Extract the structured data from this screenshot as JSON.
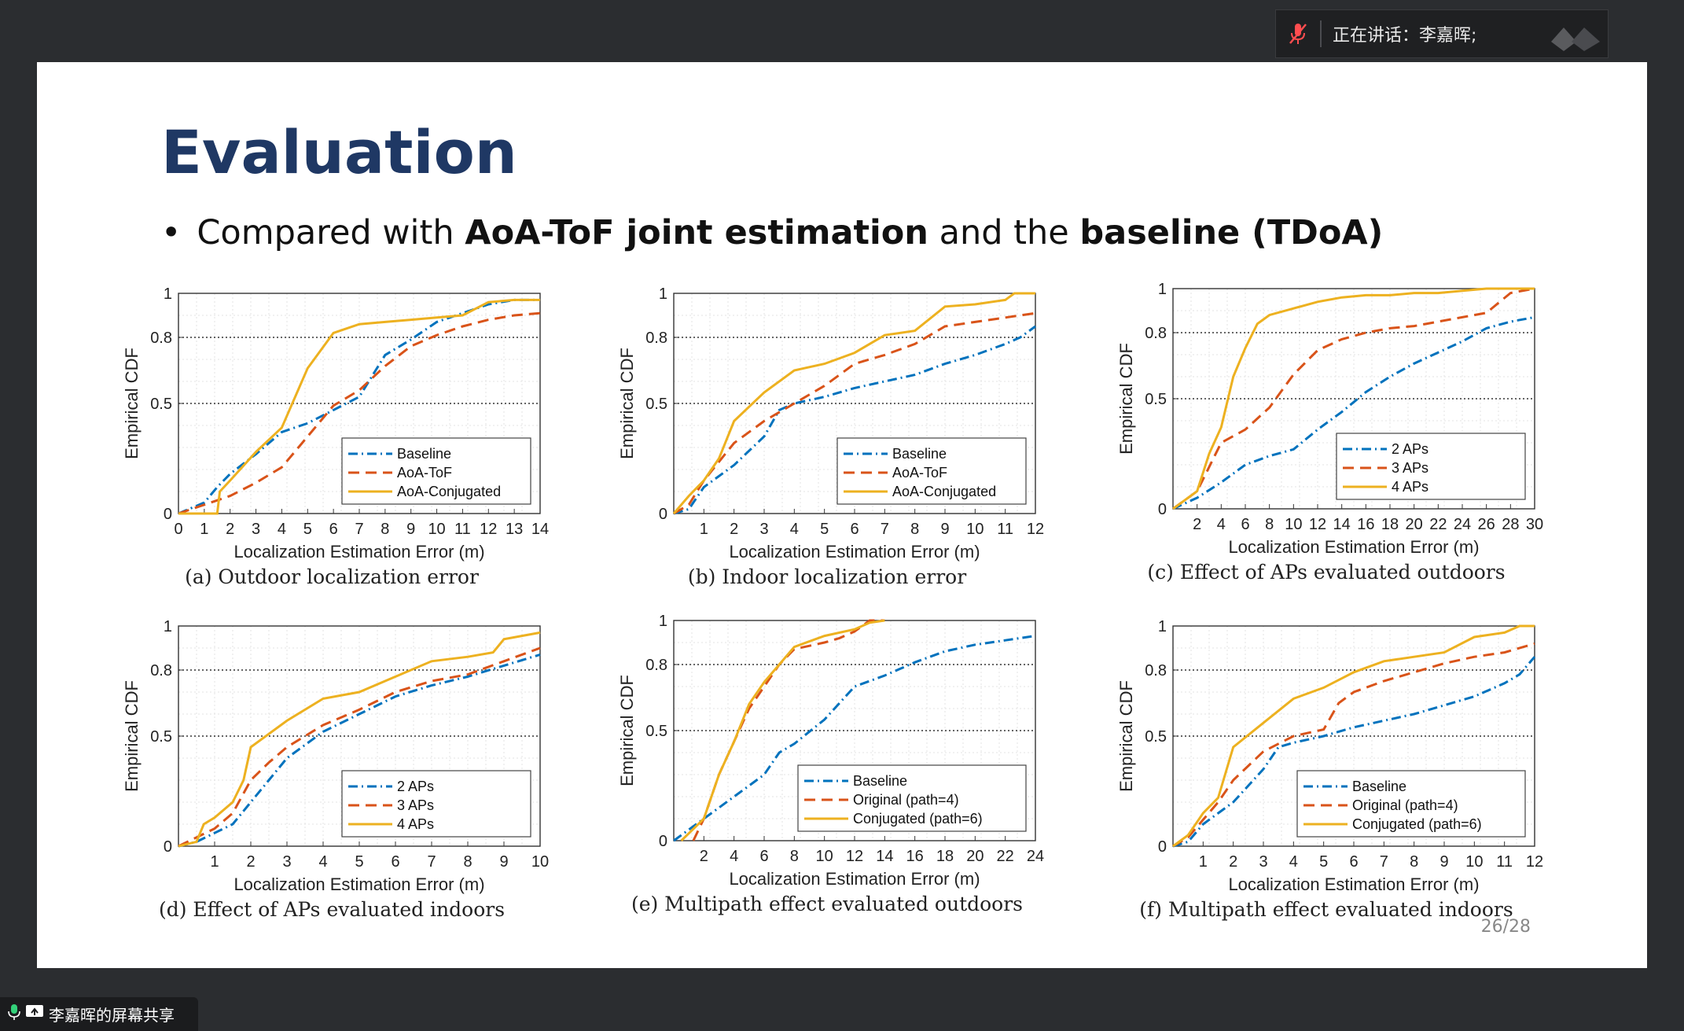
{
  "speaker_bar": {
    "label": "正在讲话：李嘉晖;"
  },
  "share_tag": {
    "label": "李嘉晖的屏幕共享"
  },
  "slide": {
    "title": "Evaluation",
    "bullet": {
      "pre": "Compared with ",
      "b1": "AoA-ToF joint estimation",
      "mid": " and the ",
      "b2": "baseline (TDoA)"
    },
    "page": "26/28"
  },
  "colors": {
    "blue": "#0072bd",
    "orange": "#d95319",
    "yellow": "#edb120",
    "title": "#1f3864"
  },
  "chart_data": [
    {
      "type": "line",
      "caption": "(a)  Outdoor localization error",
      "xlabel": "Localization Estimation Error (m)",
      "ylabel": "Empirical CDF",
      "xlim": [
        0,
        14
      ],
      "ylim": [
        0,
        1
      ],
      "xticks": [
        0,
        1,
        2,
        3,
        4,
        5,
        6,
        7,
        8,
        9,
        10,
        11,
        12,
        13,
        14
      ],
      "yticks": [
        {
          "v": 0,
          "l": "0"
        },
        {
          "v": 0.5,
          "l": "0.5"
        },
        {
          "v": 0.8,
          "l": "0.8"
        },
        {
          "v": 1,
          "l": "1"
        }
      ],
      "legend_pos": "bottom-right",
      "series": [
        {
          "name": "Baseline",
          "style": "dashdot",
          "color": "#0072bd",
          "x": [
            0,
            1,
            1.5,
            2,
            3,
            4,
            5,
            6,
            7,
            8,
            9,
            10,
            11,
            12,
            13,
            14
          ],
          "y": [
            0,
            0.05,
            0.12,
            0.18,
            0.27,
            0.37,
            0.41,
            0.47,
            0.53,
            0.72,
            0.79,
            0.87,
            0.91,
            0.95,
            0.97,
            0.97
          ]
        },
        {
          "name": "AoA-ToF",
          "style": "dashed",
          "color": "#d95319",
          "x": [
            0,
            1,
            2,
            3,
            4,
            5,
            6,
            7,
            8,
            9,
            10,
            11,
            12,
            13,
            14
          ],
          "y": [
            0,
            0.04,
            0.08,
            0.14,
            0.21,
            0.35,
            0.49,
            0.56,
            0.67,
            0.76,
            0.81,
            0.85,
            0.88,
            0.9,
            0.91
          ]
        },
        {
          "name": "AoA-Conjugated",
          "style": "solid",
          "color": "#edb120",
          "x": [
            0,
            1.5,
            1.6,
            2,
            3,
            4,
            5,
            6,
            7,
            8,
            9,
            10,
            11,
            12,
            13,
            14
          ],
          "y": [
            0,
            0,
            0.1,
            0.15,
            0.28,
            0.39,
            0.66,
            0.82,
            0.86,
            0.87,
            0.88,
            0.89,
            0.9,
            0.96,
            0.97,
            0.97
          ]
        }
      ]
    },
    {
      "type": "line",
      "caption": "(b)  Indoor localization error",
      "xlabel": "Localization Estimation Error (m)",
      "ylabel": "Empirical CDF",
      "xlim": [
        0,
        12
      ],
      "ylim": [
        0,
        1
      ],
      "xticks": [
        1,
        2,
        3,
        4,
        5,
        6,
        7,
        8,
        9,
        10,
        11,
        12
      ],
      "yticks": [
        {
          "v": 0,
          "l": "0"
        },
        {
          "v": 0.5,
          "l": "0.5"
        },
        {
          "v": 0.8,
          "l": "0.8"
        },
        {
          "v": 1,
          "l": "1"
        }
      ],
      "legend_pos": "bottom-right",
      "series": [
        {
          "name": "Baseline",
          "style": "dashdot",
          "color": "#0072bd",
          "x": [
            0,
            0.5,
            1,
            2,
            3,
            3.5,
            4,
            5,
            6,
            7,
            8,
            9,
            10,
            11,
            11.5,
            12
          ],
          "y": [
            0,
            0.02,
            0.12,
            0.22,
            0.35,
            0.47,
            0.5,
            0.53,
            0.57,
            0.6,
            0.63,
            0.68,
            0.72,
            0.77,
            0.8,
            0.85
          ]
        },
        {
          "name": "AoA-ToF",
          "style": "dashed",
          "color": "#d95319",
          "x": [
            0,
            0.5,
            1,
            2,
            3,
            4,
            5,
            6,
            7,
            8,
            9,
            10,
            11,
            12
          ],
          "y": [
            0,
            0.04,
            0.15,
            0.32,
            0.42,
            0.5,
            0.58,
            0.68,
            0.72,
            0.77,
            0.85,
            0.87,
            0.89,
            0.91
          ]
        },
        {
          "name": "AoA-Conjugated",
          "style": "solid",
          "color": "#edb120",
          "x": [
            0,
            0.5,
            1,
            1.5,
            2,
            3,
            4,
            5,
            6,
            7,
            8,
            9,
            10,
            11,
            11.3,
            12
          ],
          "y": [
            0,
            0.08,
            0.15,
            0.25,
            0.42,
            0.55,
            0.65,
            0.68,
            0.73,
            0.81,
            0.83,
            0.94,
            0.95,
            0.97,
            1,
            1
          ]
        }
      ]
    },
    {
      "type": "line",
      "caption": "(c)  Effect of APs evaluated outdoors",
      "xlabel": "Localization Estimation Error (m)",
      "ylabel": "Empirical CDF",
      "xlim": [
        0,
        30
      ],
      "ylim": [
        0,
        1
      ],
      "xticks": [
        2,
        4,
        6,
        8,
        10,
        12,
        14,
        16,
        18,
        20,
        22,
        24,
        26,
        28,
        30
      ],
      "yticks": [
        {
          "v": 0,
          "l": "0"
        },
        {
          "v": 0.5,
          "l": "0.5"
        },
        {
          "v": 0.8,
          "l": "0.8"
        },
        {
          "v": 1,
          "l": "1"
        }
      ],
      "legend_pos": "bottom-right",
      "series": [
        {
          "name": "2 APs",
          "style": "dashdot",
          "color": "#0072bd",
          "x": [
            0,
            2,
            4,
            6,
            8,
            10,
            12,
            14,
            16,
            18,
            20,
            22,
            24,
            26,
            28,
            30
          ],
          "y": [
            0,
            0.05,
            0.12,
            0.2,
            0.24,
            0.27,
            0.36,
            0.44,
            0.53,
            0.6,
            0.66,
            0.71,
            0.76,
            0.82,
            0.85,
            0.87
          ]
        },
        {
          "name": "3 APs",
          "style": "dashed",
          "color": "#d95319",
          "x": [
            0,
            2,
            4,
            6,
            8,
            10,
            12,
            14,
            16,
            18,
            20,
            22,
            24,
            26,
            28,
            30
          ],
          "y": [
            0,
            0.08,
            0.3,
            0.36,
            0.46,
            0.61,
            0.72,
            0.77,
            0.8,
            0.82,
            0.83,
            0.85,
            0.87,
            0.89,
            0.98,
            1
          ]
        },
        {
          "name": "4 APs",
          "style": "solid",
          "color": "#edb120",
          "x": [
            0,
            2,
            3,
            4,
            5,
            6,
            7,
            8,
            10,
            12,
            14,
            16,
            18,
            20,
            22,
            24,
            26,
            28,
            30
          ],
          "y": [
            0,
            0.08,
            0.25,
            0.37,
            0.6,
            0.73,
            0.84,
            0.88,
            0.91,
            0.94,
            0.96,
            0.97,
            0.97,
            0.98,
            0.98,
            0.99,
            1,
            1,
            1
          ]
        }
      ]
    },
    {
      "type": "line",
      "caption": "(d)  Effect of APs evaluated indoors",
      "xlabel": "Localization Estimation Error (m)",
      "ylabel": "Empirical CDF",
      "xlim": [
        0,
        10
      ],
      "ylim": [
        0,
        1
      ],
      "xticks": [
        1,
        2,
        3,
        4,
        5,
        6,
        7,
        8,
        9,
        10
      ],
      "yticks": [
        {
          "v": 0,
          "l": "0"
        },
        {
          "v": 0.5,
          "l": "0.5"
        },
        {
          "v": 0.8,
          "l": "0.8"
        },
        {
          "v": 1,
          "l": "1"
        }
      ],
      "legend_pos": "bottom-right",
      "series": [
        {
          "name": "2 APs",
          "style": "dashdot",
          "color": "#0072bd",
          "x": [
            0,
            0.5,
            1,
            1.5,
            2,
            2.5,
            3,
            4,
            5,
            6,
            7,
            8,
            9,
            10
          ],
          "y": [
            0,
            0.02,
            0.06,
            0.1,
            0.2,
            0.3,
            0.4,
            0.52,
            0.6,
            0.68,
            0.73,
            0.77,
            0.82,
            0.87
          ]
        },
        {
          "name": "3 APs",
          "style": "dashed",
          "color": "#d95319",
          "x": [
            0,
            0.5,
            1,
            1.5,
            2,
            2.5,
            3,
            4,
            5,
            6,
            7,
            8,
            9,
            10
          ],
          "y": [
            0,
            0.04,
            0.08,
            0.15,
            0.3,
            0.38,
            0.45,
            0.55,
            0.62,
            0.7,
            0.75,
            0.78,
            0.84,
            0.9
          ]
        },
        {
          "name": "4 APs",
          "style": "solid",
          "color": "#edb120",
          "x": [
            0,
            0.5,
            0.7,
            1,
            1.5,
            1.8,
            2,
            3,
            4,
            5,
            6,
            7,
            8,
            8.7,
            9,
            10
          ],
          "y": [
            0,
            0.02,
            0.1,
            0.13,
            0.2,
            0.3,
            0.45,
            0.57,
            0.67,
            0.7,
            0.77,
            0.84,
            0.86,
            0.88,
            0.94,
            0.97
          ]
        }
      ]
    },
    {
      "type": "line",
      "caption": "(e)  Multipath effect evaluated outdoors",
      "xlabel": "Localization Estimation Error (m)",
      "ylabel": "Empirical CDF",
      "xlim": [
        0,
        24
      ],
      "ylim": [
        0,
        1
      ],
      "xticks": [
        2,
        4,
        6,
        8,
        10,
        12,
        14,
        16,
        18,
        20,
        22,
        24
      ],
      "yticks": [
        {
          "v": 0,
          "l": "0"
        },
        {
          "v": 0.5,
          "l": "0.5"
        },
        {
          "v": 0.8,
          "l": "0.8"
        },
        {
          "v": 1,
          "l": "1"
        }
      ],
      "legend_pos": "bottom-right",
      "series": [
        {
          "name": "Baseline",
          "style": "dashdot",
          "color": "#0072bd",
          "x": [
            0,
            2,
            4,
            6,
            7,
            8,
            10,
            12,
            14,
            16,
            18,
            20,
            22,
            24
          ],
          "y": [
            0,
            0.1,
            0.2,
            0.3,
            0.4,
            0.44,
            0.55,
            0.7,
            0.75,
            0.81,
            0.86,
            0.89,
            0.91,
            0.93
          ]
        },
        {
          "name": "Original (path=4)",
          "style": "dashed",
          "color": "#d95319",
          "x": [
            1.3,
            2,
            3,
            4,
            5,
            6,
            7,
            8,
            10,
            11,
            12,
            13,
            14
          ],
          "y": [
            0,
            0.1,
            0.3,
            0.45,
            0.6,
            0.7,
            0.8,
            0.87,
            0.9,
            0.92,
            0.95,
            1,
            1
          ]
        },
        {
          "name": "Conjugated (path=6)",
          "style": "solid",
          "color": "#edb120",
          "x": [
            0.5,
            2,
            3,
            4,
            5,
            6,
            7,
            8,
            10,
            12,
            13,
            14
          ],
          "y": [
            0,
            0.1,
            0.3,
            0.45,
            0.62,
            0.72,
            0.8,
            0.88,
            0.93,
            0.96,
            0.99,
            1
          ]
        }
      ]
    },
    {
      "type": "line",
      "caption": "(f)  Multipath effect evaluated indoors",
      "xlabel": "Localization Estimation Error (m)",
      "ylabel": "Empirical CDF",
      "xlim": [
        0,
        12
      ],
      "ylim": [
        0,
        1
      ],
      "xticks": [
        1,
        2,
        3,
        4,
        5,
        6,
        7,
        8,
        9,
        10,
        11,
        12
      ],
      "yticks": [
        {
          "v": 0,
          "l": "0"
        },
        {
          "v": 0.5,
          "l": "0.5"
        },
        {
          "v": 0.8,
          "l": "0.8"
        },
        {
          "v": 1,
          "l": "1"
        }
      ],
      "legend_pos": "bottom-right",
      "series": [
        {
          "name": "Baseline",
          "style": "dashdot",
          "color": "#0072bd",
          "x": [
            0,
            0.5,
            1,
            1.5,
            2,
            3,
            3.5,
            4,
            5,
            6,
            7,
            8,
            9,
            10,
            11,
            11.5,
            12
          ],
          "y": [
            0,
            0.02,
            0.1,
            0.15,
            0.2,
            0.35,
            0.45,
            0.47,
            0.5,
            0.54,
            0.57,
            0.6,
            0.64,
            0.68,
            0.74,
            0.78,
            0.86
          ]
        },
        {
          "name": "Original (path=4)",
          "style": "dashed",
          "color": "#d95319",
          "x": [
            0,
            0.5,
            1,
            1.5,
            2,
            3,
            4,
            5,
            5.5,
            6,
            7,
            8,
            9,
            10,
            11,
            12
          ],
          "y": [
            0,
            0.04,
            0.12,
            0.2,
            0.3,
            0.43,
            0.5,
            0.53,
            0.65,
            0.7,
            0.75,
            0.79,
            0.83,
            0.86,
            0.88,
            0.92
          ]
        },
        {
          "name": "Conjugated (path=6)",
          "style": "solid",
          "color": "#edb120",
          "x": [
            0,
            0.5,
            1,
            1.5,
            2,
            3,
            4,
            5,
            6,
            7,
            8,
            9,
            10,
            11,
            11.5,
            12
          ],
          "y": [
            0,
            0.05,
            0.15,
            0.22,
            0.45,
            0.56,
            0.67,
            0.72,
            0.79,
            0.84,
            0.86,
            0.88,
            0.95,
            0.97,
            1,
            1
          ]
        }
      ]
    }
  ]
}
